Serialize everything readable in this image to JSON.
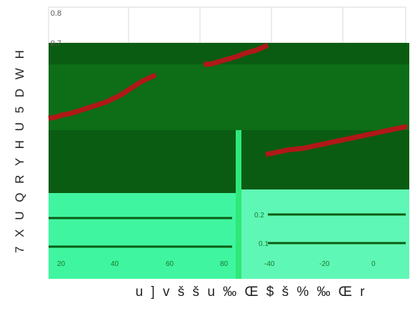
{
  "colors": {
    "band_dark": "#0a5c12",
    "band_mid": "#0d6e17",
    "band_light": "#3ff5a0",
    "band_pale": "#5ff7b5",
    "series": "#b01818",
    "grid": "#d9d9d9",
    "axis_text": "#555555",
    "tick_text_light": "#1a7a2a"
  },
  "chart_data": {
    "type": "line",
    "title": "",
    "xlabel": "u ] v š š u ‰ Œ $ š % ‰ Œ r",
    "ylabel": "7 X U Q R Y H U  5 D W H",
    "ylim": [
      0,
      0.8
    ],
    "y_ticks_visible": [
      "0.8",
      "0.7"
    ],
    "x_tick_labels": [
      "20",
      "40",
      "60",
      "80",
      "-40",
      "-20",
      "0"
    ],
    "mid_tick_labels": [
      "0.2",
      "0.1"
    ],
    "grid": true,
    "series": [
      {
        "x": [
          0,
          2,
          4,
          6,
          8,
          10,
          12,
          14,
          16,
          18,
          20,
          22,
          24,
          26,
          28,
          30
        ],
        "values": [
          0.33,
          0.335,
          0.345,
          0.35,
          0.36,
          0.37,
          0.38,
          0.39,
          0.4,
          0.415,
          0.43,
          0.45,
          0.47,
          0.49,
          0.505,
          0.52
        ]
      },
      {
        "x": [
          45,
          48,
          51,
          54,
          57,
          60,
          63,
          66,
          69,
          72,
          74
        ],
        "values": [
          0.6,
          0.6,
          0.61,
          0.62,
          0.63,
          0.64,
          0.655,
          0.665,
          0.675,
          0.69,
          0.7
        ]
      },
      {
        "x": [
          62,
          64,
          68,
          72,
          76,
          80,
          84,
          88,
          92,
          96,
          100
        ],
        "values": [
          0.2,
          0.205,
          0.215,
          0.22,
          0.23,
          0.24,
          0.25,
          0.26,
          0.27,
          0.28,
          0.29
        ]
      }
    ]
  }
}
